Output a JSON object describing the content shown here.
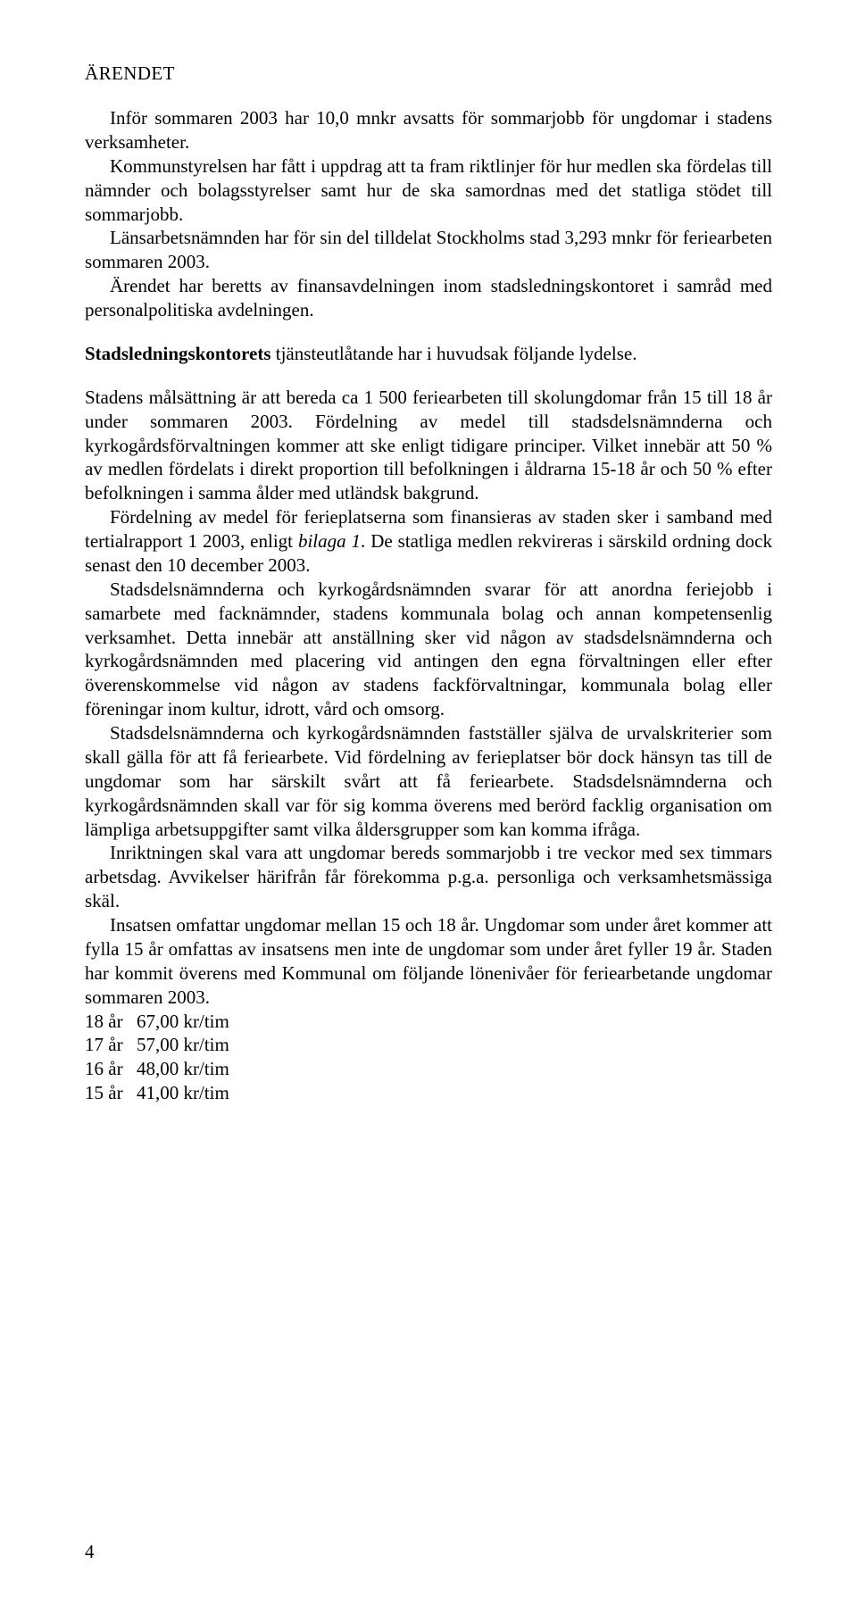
{
  "title": "ÄRENDET",
  "intro_p1": "Inför sommaren 2003 har 10,0 mnkr avsatts för sommarjobb för ungdomar i stadens verksamheter.",
  "intro_p2": "Kommunstyrelsen har fått i uppdrag att ta fram riktlinjer för hur medlen ska fördelas till nämnder och bolagsstyrelser samt hur de ska samordnas med det statliga stödet till sommarjobb.",
  "intro_p3": "Länsarbetsnämnden har för sin del tilldelat Stockholms stad 3,293 mnkr för feriearbeten sommaren 2003.",
  "intro_p4": "Ärendet har beretts av finansavdelningen inom stadsledningskontoret i samråd med personalpolitiska avdelningen.",
  "subhead_bold": "Stadsledningskontorets",
  "subhead_rest": " tjänsteutlåtande har i huvudsak följande lydelse.",
  "body_p1": "Stadens målsättning är att bereda ca 1 500 feriearbeten till skolungdomar från 15 till 18 år under sommaren 2003. Fördelning av medel till stadsdelsnämnderna och kyrkogårdsförvaltningen kommer att ske enligt tidigare principer. Vilket innebär att 50 % av medlen fördelats i direkt proportion till befolkningen i åldrarna 15-18 år och 50 % efter befolkningen i samma ålder med utländsk bakgrund.",
  "body_p2_a": "Fördelning av medel för ferieplatserna som finansieras av staden sker i samband med tertialrapport 1 2003, enligt ",
  "body_p2_ital": "bilaga 1",
  "body_p2_b": ". De statliga medlen rekvireras i särskild ordning dock senast den 10 december 2003.",
  "body_p3": "Stadsdelsnämnderna och kyrkogårdsnämnden svarar för att anordna feriejobb i samarbete med facknämnder, stadens kommunala bolag och annan kompetensenlig verksamhet. Detta innebär att anställning sker vid någon av stadsdelsnämnderna och kyrkogårdsnämnden med placering vid antingen den egna förvaltningen eller efter överenskommelse vid någon av stadens fackförvaltningar, kommunala bolag eller föreningar inom kultur, idrott, vård och omsorg.",
  "body_p4": "Stadsdelsnämnderna och kyrkogårdsnämnden fastställer själva de urvalskriterier som skall gälla för att få feriearbete. Vid fördelning av ferieplatser bör dock hänsyn tas till de ungdomar som har särskilt svårt att få feriearbete. Stadsdelsnämnderna och kyrkogårdsnämnden skall var för sig komma överens med berörd facklig organisation om lämpliga arbetsuppgifter samt vilka åldersgrupper som kan komma ifråga.",
  "body_p5": "Inriktningen skal vara att ungdomar bereds sommarjobb i tre veckor med sex timmars arbetsdag. Avvikelser härifrån får förekomma p.g.a. personliga och verksamhetsmässiga skäl.",
  "body_p6": "Insatsen omfattar ungdomar mellan 15 och 18 år. Ungdomar som under året kommer att fylla 15 år omfattas av insatsens men inte de ungdomar som under året fyller 19 år. Staden har kommit överens med Kommunal om följande lönenivåer för feriearbetande ungdomar sommaren 2003.",
  "wages": [
    {
      "age": "18 år",
      "rate": "67,00 kr/tim"
    },
    {
      "age": "17 år",
      "rate": "57,00 kr/tim"
    },
    {
      "age": "16 år",
      "rate": "48,00 kr/tim"
    },
    {
      "age": "15 år",
      "rate": "41,00 kr/tim"
    }
  ],
  "page_number": "4"
}
